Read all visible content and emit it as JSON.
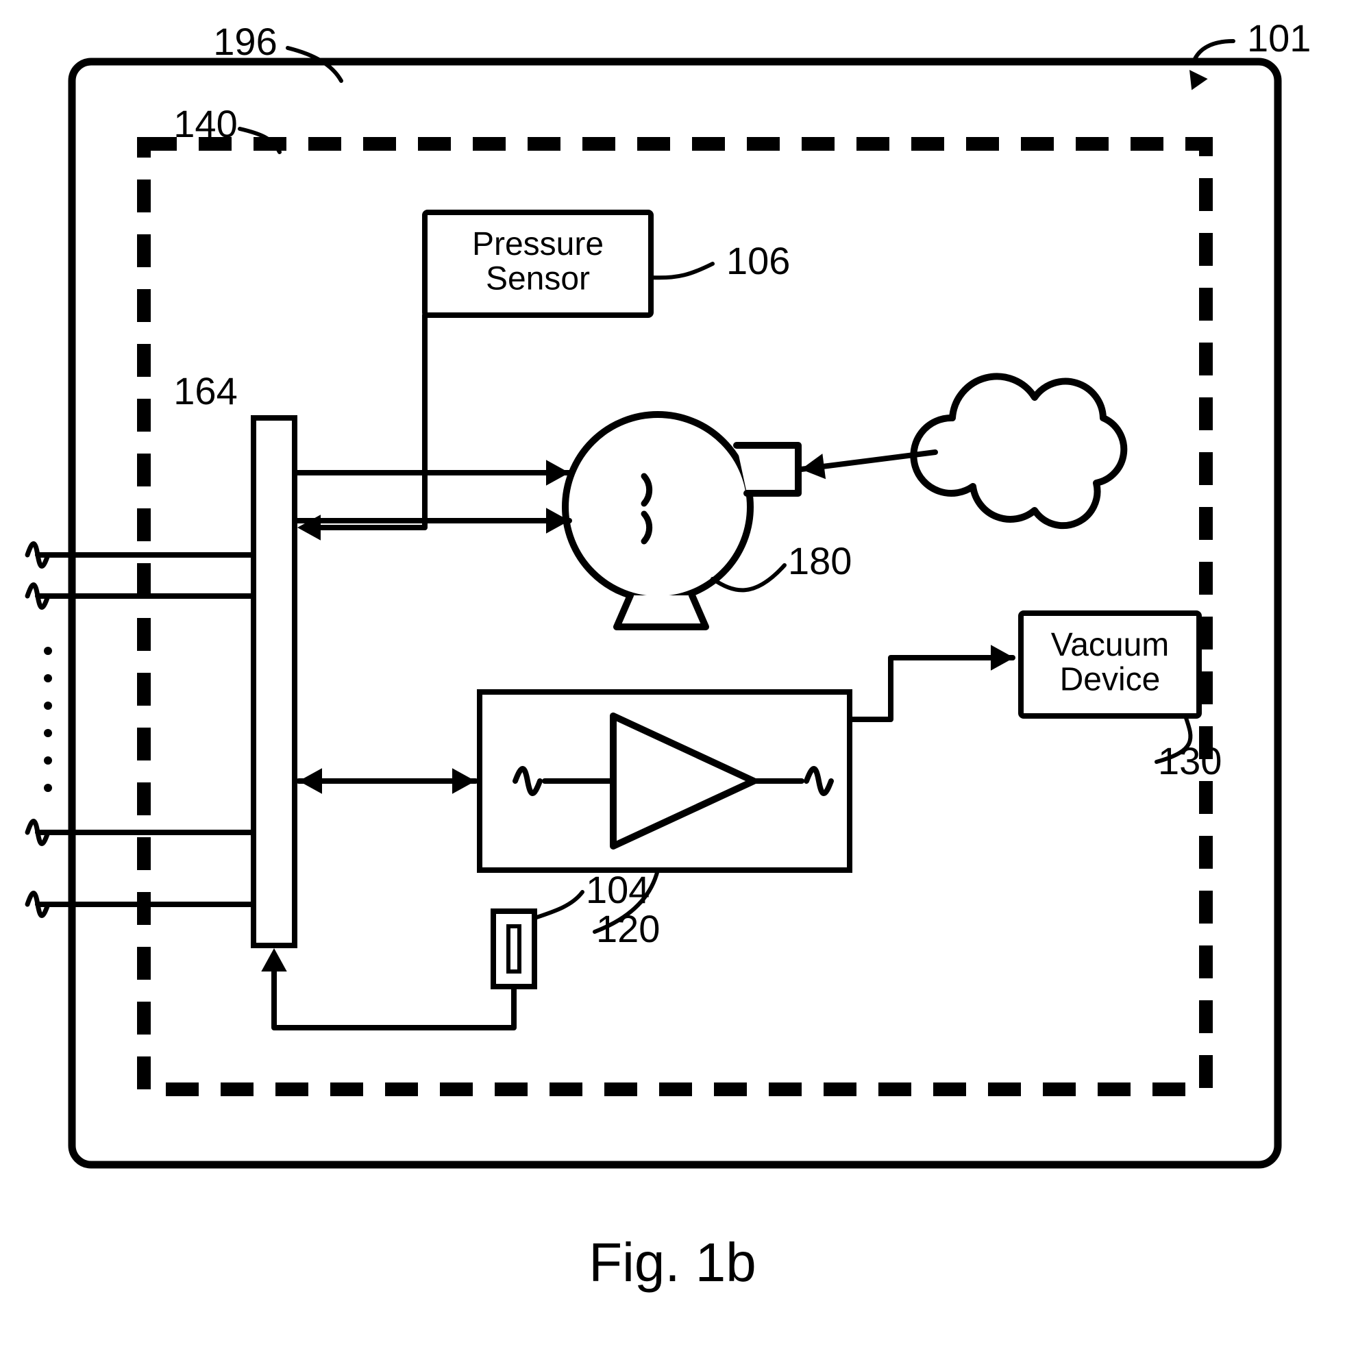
{
  "figure": {
    "caption": "Fig. 1b",
    "caption_fontsize": 80,
    "label_fontsize": 56,
    "box_label_fontsize": 48,
    "background_color": "#ffffff",
    "stroke_color": "#000000",
    "stroke_width_outer": 11,
    "stroke_width_inner": 10,
    "stroke_width_thin": 8,
    "dash_pattern": "48 32"
  },
  "labels": {
    "outer_box": "196",
    "system": "101",
    "dashed_box": "140",
    "pressure_sensor": "Pressure\nSensor",
    "pressure_sensor_ref": "106",
    "bus": "164",
    "pump": "180",
    "vacuum_device": "Vacuum\nDevice",
    "vacuum_device_ref": "130",
    "small_block": "104",
    "amp_block": "120"
  }
}
